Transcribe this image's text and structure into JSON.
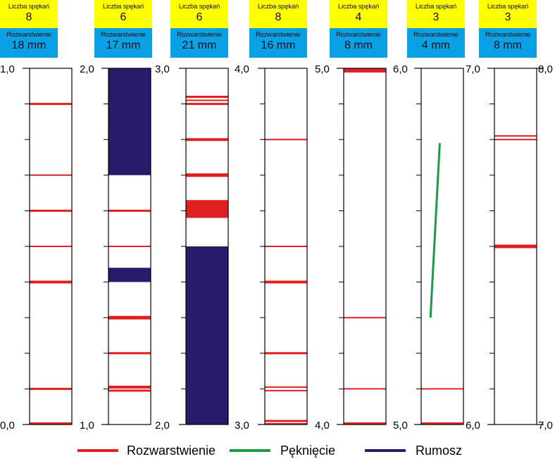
{
  "columns": [
    {
      "count_label": "Liczba spękań",
      "count": "8",
      "spacing_label": "Rozwarstwienie",
      "spacing": "18 mm",
      "top_label": "1,0",
      "bottom_label": "0,0",
      "delam": [
        [
          0.9,
          3
        ],
        [
          0.7,
          2
        ],
        [
          0.6,
          3
        ],
        [
          0.5,
          2
        ],
        [
          0.4,
          4
        ],
        [
          0.1,
          3
        ],
        [
          0.0,
          3
        ]
      ],
      "rubble": [],
      "crack": null
    },
    {
      "count_label": "Liczba spękań",
      "count": "6",
      "spacing_label": "Rozwarstwienie",
      "spacing": "17 mm",
      "top_label": "2,0",
      "bottom_label": "1,0",
      "delam": [
        [
          0.6,
          3
        ],
        [
          0.5,
          2
        ],
        [
          0.3,
          5
        ],
        [
          0.2,
          3
        ],
        [
          0.105,
          4
        ],
        [
          0.095,
          3
        ]
      ],
      "rubble": [
        [
          1.0,
          0.7
        ],
        [
          0.44,
          0.4
        ]
      ],
      "crack": null
    },
    {
      "count_label": "Liczba spękań",
      "count": "6",
      "spacing_label": "Rozwarstwienie",
      "spacing": "21 mm",
      "top_label": "3,0",
      "bottom_label": "2,0",
      "delam": [
        [
          0.92,
          3
        ],
        [
          0.91,
          2
        ],
        [
          0.9,
          3
        ],
        [
          0.8,
          4
        ],
        [
          0.7,
          5
        ]
      ],
      "red_blocks": [
        [
          0.63,
          0.58
        ]
      ],
      "rubble": [
        [
          0.5,
          0.0
        ]
      ],
      "crack": null
    },
    {
      "count_label": "Liczba spękań",
      "count": "8",
      "spacing_label": "Rozwarstwienie",
      "spacing": "16 mm",
      "top_label": "4,0",
      "bottom_label": "3,0",
      "delam": [
        [
          0.8,
          2
        ],
        [
          0.5,
          2
        ],
        [
          0.4,
          4
        ],
        [
          0.2,
          3
        ],
        [
          0.105,
          2
        ],
        [
          0.095,
          2
        ],
        [
          0.01,
          3
        ],
        [
          0.0,
          2
        ]
      ],
      "rubble": [],
      "crack": null
    },
    {
      "count_label": "Liczba spękań",
      "count": "4",
      "spacing_label": "Rozwarstwienie",
      "spacing": "8 mm",
      "top_label": "5,0",
      "bottom_label": "4,0",
      "delam": [
        [
          0.995,
          6
        ],
        [
          0.3,
          2
        ],
        [
          0.1,
          2
        ],
        [
          0.0,
          3
        ]
      ],
      "rubble": [],
      "crack": null
    },
    {
      "count_label": "Liczba spękań",
      "count": "3",
      "spacing_label": "Rozwarstwienie",
      "spacing": "4 mm",
      "top_label": "6,0",
      "bottom_label": "5,0",
      "delam": [
        [
          0.1,
          2
        ],
        [
          0.0,
          3
        ]
      ],
      "rubble": [],
      "crack": [
        [
          0.3,
          0.22
        ],
        [
          0.79,
          0.44
        ]
      ]
    },
    {
      "count_label": "Liczba spękań",
      "count": "3",
      "spacing_label": "Rozwarstwienie",
      "spacing": "8 mm",
      "top_label": "7,0",
      "bottom_label": "6,0",
      "outer_top": "8,0",
      "outer_bottom": "7,0",
      "delam": [
        [
          0.81,
          2
        ],
        [
          0.8,
          2
        ],
        [
          0.5,
          5
        ]
      ],
      "rubble": [],
      "crack": null
    }
  ],
  "legend": [
    {
      "label": "Rozwarstwienie",
      "color": "#e02020"
    },
    {
      "label": "Pęknięcie",
      "color": "#1a9a4a"
    },
    {
      "label": "Rumosz",
      "color": "#2a1a6a"
    }
  ],
  "colors": {
    "delamination": "#e02020",
    "crack": "#1a9a4a",
    "rubble": "#2a1a6a"
  }
}
